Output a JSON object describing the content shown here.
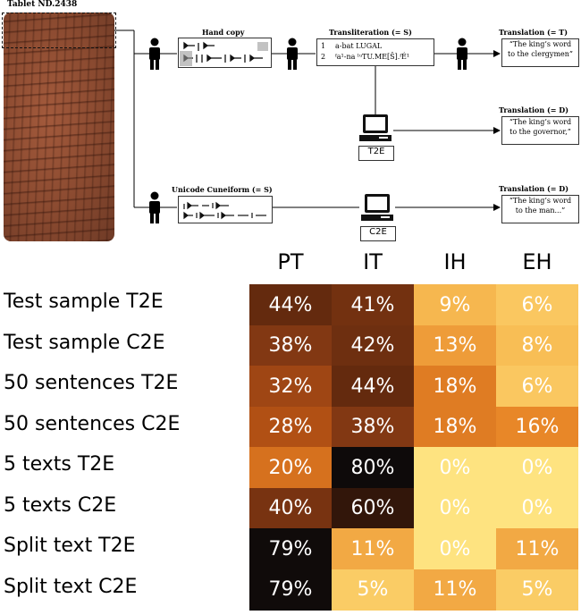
{
  "diagram": {
    "tablet_title": "Tablet ND.2438",
    "hand_copy_label": "Hand copy",
    "transliteration_label": "Transliteration (= S)",
    "transliteration_lines": [
      {
        "num": "1",
        "text": "a-bat LUGAL"
      },
      {
        "num": "2",
        "text": "ᶠa¹-na ˡᵘTU.ME[Š].ᶠÉ¹"
      }
    ],
    "unicode_label": "Unicode Cuneiform (= S)",
    "translations": [
      {
        "label": "Translation (= T)",
        "line1": "“The king’s word",
        "line2": "to the clergymen”"
      },
      {
        "label": "Translation (= D)",
        "line1": "“The king’s word",
        "line2": "to the governor,”"
      },
      {
        "label": "Translation (= D)",
        "line1": "“The king’s word",
        "line2": "to the man...”"
      }
    ],
    "computer_labels": [
      "T2E",
      "C2E"
    ],
    "icons": {
      "person": "person-icon",
      "computer": "computer-icon"
    }
  },
  "chart_data": {
    "type": "heatmap",
    "columns": [
      "PT",
      "IT",
      "IH",
      "EH"
    ],
    "rows": [
      "Test sample T2E",
      "Test sample C2E",
      "50 sentences T2E",
      "50 sentences C2E",
      "5 texts T2E",
      "5 texts C2E",
      "Split text T2E",
      "Split text C2E"
    ],
    "values": [
      [
        44,
        41,
        9,
        6
      ],
      [
        38,
        42,
        13,
        8
      ],
      [
        32,
        44,
        18,
        6
      ],
      [
        28,
        38,
        18,
        16
      ],
      [
        20,
        80,
        0,
        0
      ],
      [
        40,
        60,
        0,
        0
      ],
      [
        79,
        11,
        0,
        11
      ],
      [
        79,
        5,
        11,
        5
      ]
    ],
    "unit": "%",
    "colormap": "YlOrBr-like: pale yellow (low) to black (high)",
    "vrange": [
      0,
      80
    ]
  }
}
